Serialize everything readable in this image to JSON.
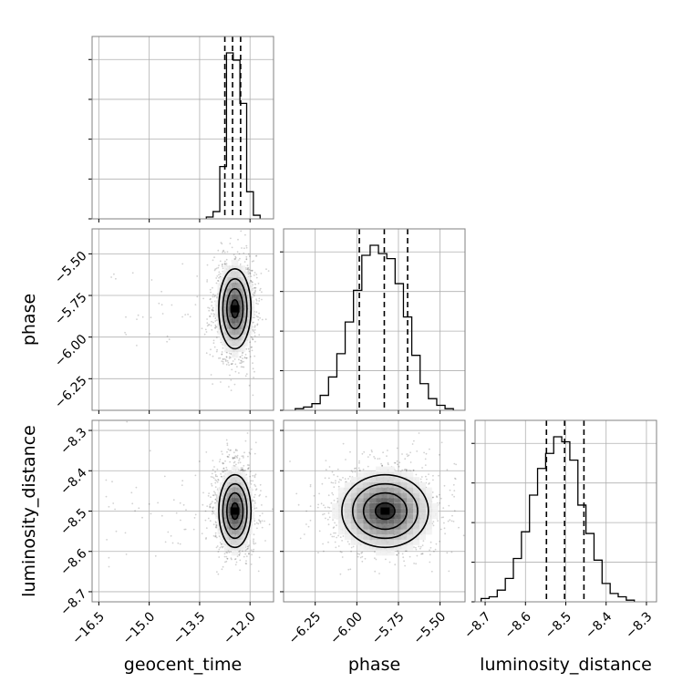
{
  "chart_data": {
    "type": "corner",
    "parameters": [
      "geocent_time",
      "phase",
      "luminosity_distance"
    ],
    "axis_labels": {
      "geocent_time": "geocent_time",
      "phase": "phase",
      "luminosity_distance": "luminosity_distance"
    },
    "ranges": {
      "geocent_time": [
        -16.7,
        -11.3
      ],
      "phase": [
        -6.44,
        -5.35
      ],
      "luminosity_distance": [
        -8.725,
        -8.275
      ]
    },
    "ticks": {
      "geocent_time": [
        {
          "value": -16.5,
          "label": "−16.5"
        },
        {
          "value": -15.0,
          "label": "−15.0"
        },
        {
          "value": -13.5,
          "label": "−13.5"
        },
        {
          "value": -12.0,
          "label": "−12.0"
        }
      ],
      "phase": [
        {
          "value": -6.25,
          "label": "−6.25"
        },
        {
          "value": -6.0,
          "label": "−6.00"
        },
        {
          "value": -5.75,
          "label": "−5.75"
        },
        {
          "value": -5.5,
          "label": "−5.50"
        }
      ],
      "luminosity_distance": [
        {
          "value": -8.7,
          "label": "−8.7"
        },
        {
          "value": -8.6,
          "label": "−8.6"
        },
        {
          "value": -8.5,
          "label": "−8.5"
        },
        {
          "value": -8.4,
          "label": "−8.4"
        },
        {
          "value": -8.3,
          "label": "−8.3"
        }
      ]
    },
    "quantiles": {
      "geocent_time": [
        -12.75,
        -12.52,
        -12.28
      ],
      "phase": [
        -5.985,
        -5.835,
        -5.695
      ],
      "luminosity_distance": [
        -8.548,
        -8.503,
        -8.455
      ]
    },
    "histograms": {
      "geocent_time": {
        "edges": [
          -13.3,
          -13.1,
          -12.9,
          -12.7,
          -12.5,
          -12.3,
          -12.1,
          -11.9,
          -11.7
        ],
        "counts": [
          1,
          4,
          29,
          92,
          88,
          64,
          15,
          2
        ]
      },
      "phase": {
        "edges": [
          -6.37,
          -6.32,
          -6.27,
          -6.22,
          -6.17,
          -6.12,
          -6.07,
          -6.02,
          -5.97,
          -5.92,
          -5.87,
          -5.82,
          -5.77,
          -5.72,
          -5.67,
          -5.62,
          -5.57,
          -5.52,
          -5.47,
          -5.42
        ],
        "counts": [
          1,
          2,
          4,
          9,
          20,
          34,
          53,
          72,
          93,
          99,
          94,
          91,
          76,
          56,
          33,
          16,
          7,
          3,
          1
        ]
      },
      "luminosity_distance": {
        "edges": [
          -8.71,
          -8.69,
          -8.67,
          -8.65,
          -8.63,
          -8.61,
          -8.59,
          -8.57,
          -8.55,
          -8.53,
          -8.51,
          -8.49,
          -8.47,
          -8.45,
          -8.43,
          -8.41,
          -8.39,
          -8.37,
          -8.35,
          -8.33
        ],
        "counts": [
          2,
          3,
          7,
          14,
          26,
          42,
          64,
          80,
          89,
          99,
          96,
          85,
          58,
          41,
          25,
          11,
          5,
          3,
          1
        ]
      }
    },
    "densities": {
      "phase|geocent_time": {
        "cx": -12.45,
        "sx": 0.24,
        "cy": -5.83,
        "sy": 0.12
      },
      "luminosity_distance|geocent_time": {
        "cx": -12.45,
        "sx": 0.24,
        "cy": -8.5,
        "sy": 0.045
      },
      "luminosity_distance|phase": {
        "cx": -5.83,
        "sx": 0.13,
        "cy": -8.5,
        "sy": 0.045
      }
    },
    "grid": true,
    "colors": {
      "line": "#000000",
      "grid": "#b0b0b0",
      "points": "#000000",
      "frame": "#808080"
    }
  }
}
